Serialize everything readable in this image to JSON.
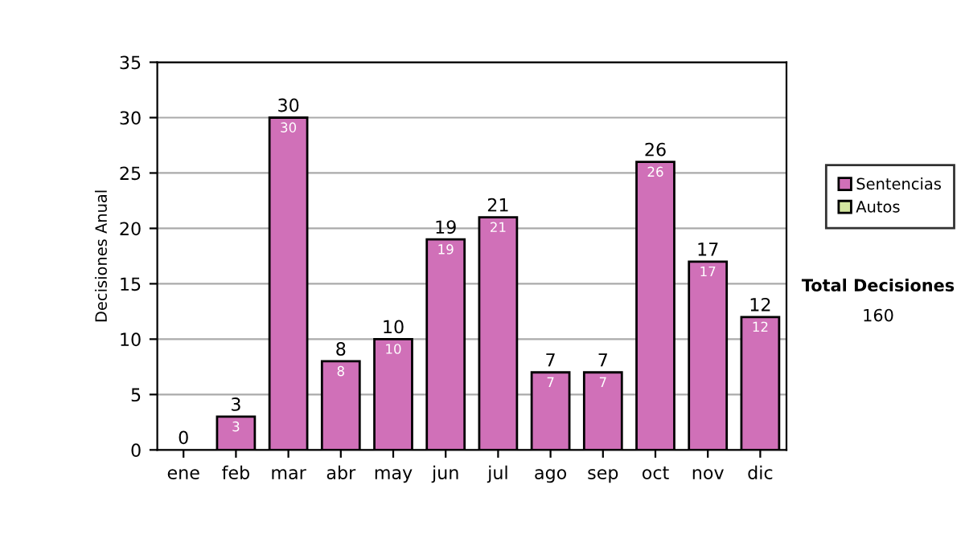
{
  "chart_data": {
    "type": "bar",
    "ylabel": "Decisiones Anual",
    "categories": [
      "ene",
      "feb",
      "mar",
      "abr",
      "may",
      "jun",
      "jul",
      "ago",
      "sep",
      "oct",
      "nov",
      "dic"
    ],
    "series": [
      {
        "name": "Sentencias",
        "color": "#d070b8",
        "values": [
          0,
          3,
          30,
          8,
          10,
          19,
          21,
          7,
          7,
          26,
          17,
          12
        ],
        "value_labels": [
          "0",
          "3",
          "30",
          "8",
          "10",
          "19",
          "21",
          "7",
          "7",
          "26",
          "17",
          "12"
        ]
      },
      {
        "name": "Autos",
        "color": "#d4e6a0",
        "values": [
          null,
          null,
          null,
          null,
          null,
          null,
          null,
          null,
          null,
          null,
          null,
          null
        ]
      }
    ],
    "ylim": [
      0,
      35
    ],
    "yticks": [
      0,
      5,
      10,
      15,
      20,
      25,
      30,
      35
    ],
    "grid": "y",
    "legend": "right",
    "annotations": [
      "Total Decisiones",
      "160",
      {
        "text": "3",
        "x": "feb",
        "y": 3
      },
      {
        "text": "30",
        "x": "mar",
        "y": 30
      },
      {
        "text": "8",
        "x": "abr",
        "y": 8
      },
      {
        "text": "10",
        "x": "may",
        "y": 10
      },
      {
        "text": "19",
        "x": "jun",
        "y": 19
      },
      {
        "text": "21",
        "x": "jul",
        "y": 21
      },
      {
        "text": "7",
        "x": "ago",
        "y": 7
      },
      {
        "text": "7",
        "x": "sep",
        "y": 7
      },
      {
        "text": "26",
        "x": "oct",
        "y": 26
      },
      {
        "text": "17",
        "x": "nov",
        "y": 17
      },
      {
        "text": "12",
        "x": "dic",
        "y": 12
      }
    ]
  }
}
